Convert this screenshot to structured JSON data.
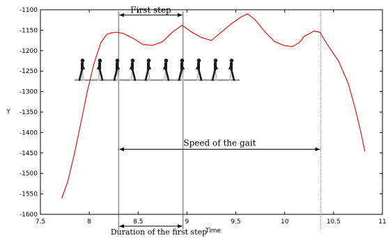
{
  "chart_data": {
    "type": "line",
    "xlabel": "Time",
    "ylabel": "Y",
    "xlim": [
      7.5,
      11
    ],
    "ylim": [
      -1600,
      -1100
    ],
    "xticks": [
      "7.5",
      "8",
      "8.5",
      "9",
      "9.5",
      "10",
      "10.5",
      "11"
    ],
    "yticks": [
      "-1100",
      "-1150",
      "-1200",
      "-1250",
      "-1300",
      "-1350",
      "-1400",
      "-1450",
      "-1500",
      "-1550",
      "-1600"
    ],
    "grid": false,
    "line_color": "#e8130f",
    "series": [
      {
        "x": [
          7.72,
          7.78,
          7.85,
          7.92,
          7.98,
          8.05,
          8.12,
          8.18,
          8.22,
          8.28,
          8.35,
          8.45,
          8.55,
          8.65,
          8.75,
          8.85,
          8.95,
          9.05,
          9.15,
          9.25,
          9.35,
          9.45,
          9.55,
          9.62,
          9.7,
          9.8,
          9.9,
          10.0,
          10.08,
          10.15,
          10.2,
          10.3,
          10.36,
          10.45,
          10.55,
          10.65,
          10.72,
          10.78,
          10.82
        ],
        "y": [
          -1560,
          -1520,
          -1450,
          -1370,
          -1300,
          -1230,
          -1180,
          -1160,
          -1157,
          -1155,
          -1158,
          -1170,
          -1185,
          -1187,
          -1178,
          -1155,
          -1138,
          -1155,
          -1168,
          -1175,
          -1155,
          -1135,
          -1118,
          -1110,
          -1125,
          -1155,
          -1178,
          -1188,
          -1190,
          -1180,
          -1165,
          -1152,
          -1155,
          -1190,
          -1225,
          -1280,
          -1340,
          -1400,
          -1445
        ]
      }
    ],
    "vertical_lines": [
      8.3,
      8.96,
      10.37
    ],
    "annotations": [
      {
        "label": "First step",
        "x_from": 8.3,
        "x_to": 8.96,
        "y": -1113
      },
      {
        "label": "Speed of the gait",
        "x_from": 8.3,
        "x_to": 10.37,
        "y": -1441
      },
      {
        "label": "Duration of the first step",
        "x_from": 8.3,
        "x_to": 8.96,
        "y": -1614
      }
    ]
  },
  "colors": {
    "line": "#e8130f",
    "axis": "#000000",
    "walker_dark": "#1a1a1a",
    "walker_light": "#c8c8c8"
  }
}
